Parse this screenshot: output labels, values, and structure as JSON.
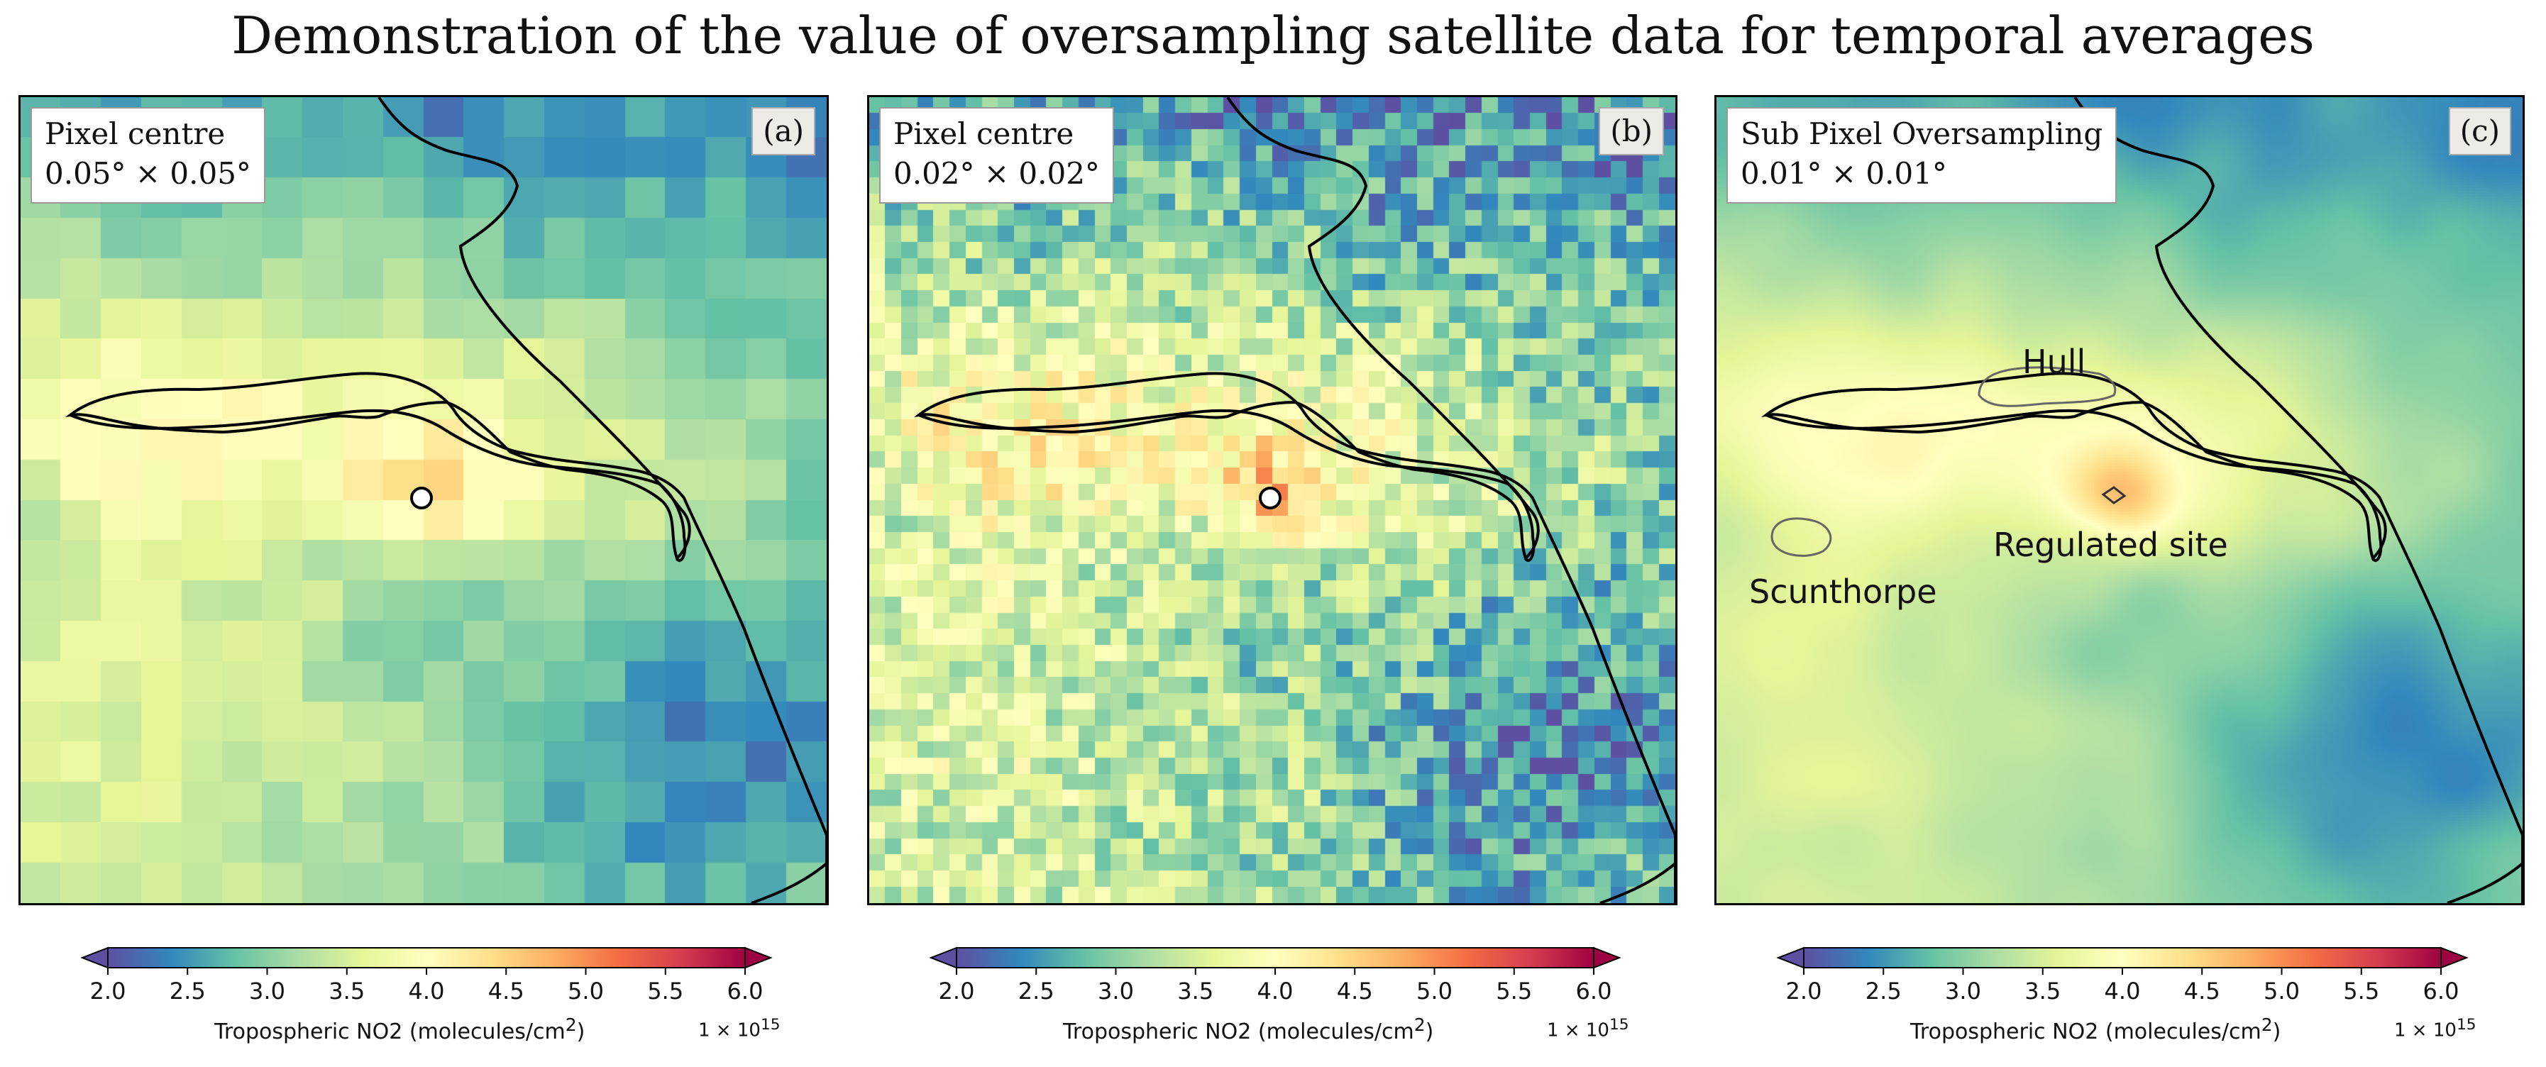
{
  "title": "Demonstration of the value of oversampling satellite data for temporal averages",
  "panels": [
    {
      "label_line1": "Pixel centre",
      "label_line2": "0.05° × 0.05°",
      "tag": "(a)",
      "grid_cells": 20,
      "noise": 0.18,
      "places": []
    },
    {
      "label_line1": "Pixel centre",
      "label_line2": "0.02° × 0.02°",
      "tag": "(b)",
      "grid_cells": 50,
      "noise": 0.55,
      "places": []
    },
    {
      "label_line1": "Sub Pixel Oversampling",
      "label_line2": "0.01° × 0.01°",
      "tag": "(c)",
      "grid_cells": 0,
      "noise": 0.0,
      "places": [
        "Hull",
        "Regulated site",
        "Scunthorpe"
      ]
    }
  ],
  "colorbar": {
    "ticks": [
      "2.0",
      "2.5",
      "3.0",
      "3.5",
      "4.0",
      "4.5",
      "5.0",
      "5.5",
      "6.0"
    ],
    "vmin": 2.0,
    "vmax": 6.0,
    "label_prefix": "Tropospheric NO2 (molecules/cm",
    "label_sup": "2",
    "label_suffix": ")",
    "scale_prefix": "1 × 10",
    "scale_exp": "15"
  },
  "colormap": [
    "#5e4fa2",
    "#3288bd",
    "#66c2a5",
    "#abdda4",
    "#e6f598",
    "#ffffbf",
    "#fee08b",
    "#fdae61",
    "#f46d43",
    "#d53e4f",
    "#9e0142"
  ]
}
